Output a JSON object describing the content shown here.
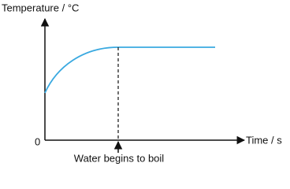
{
  "axes": {
    "y_label": "Temperature / °C",
    "x_label": "Time / s",
    "origin": "0"
  },
  "annotation": "Water begins to boil"
}
